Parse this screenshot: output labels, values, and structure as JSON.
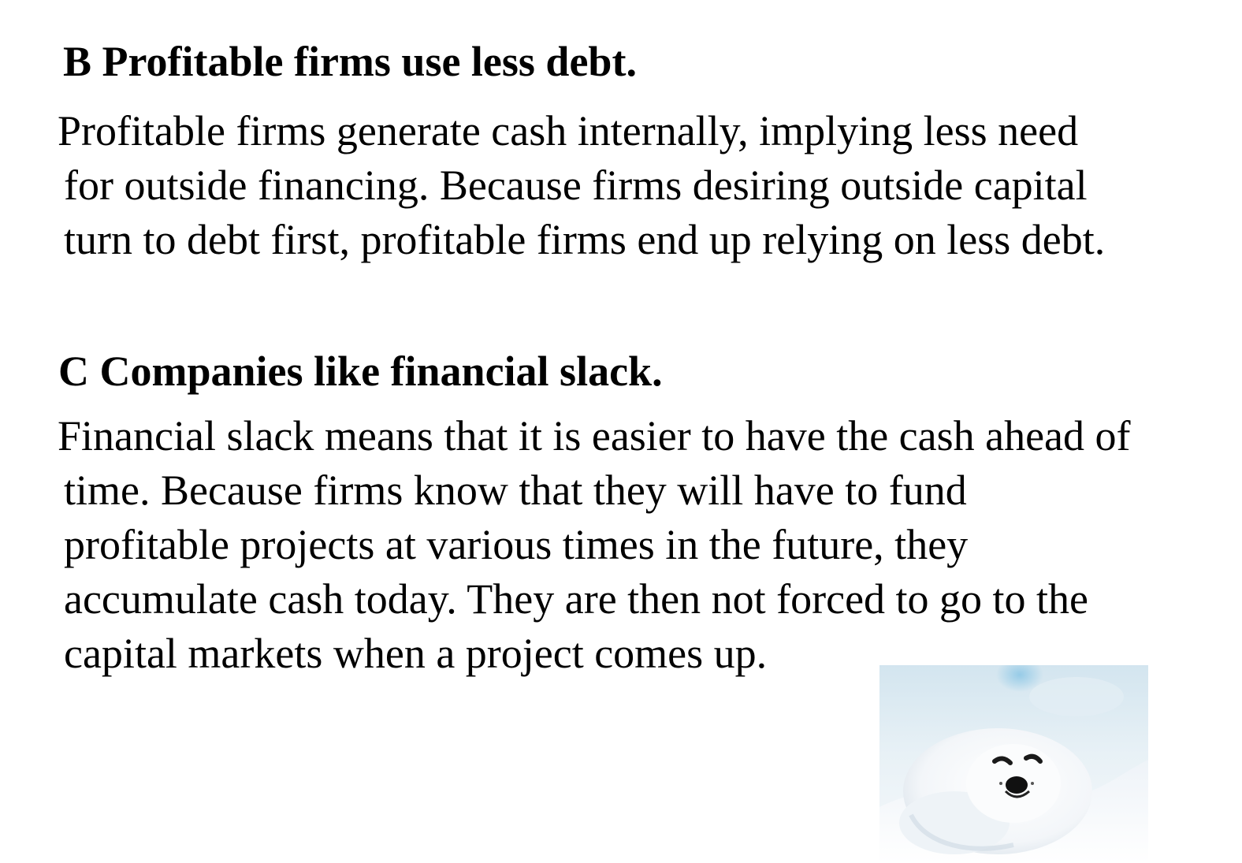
{
  "section_b": {
    "heading": "B Profitable firms use less debt.",
    "lines": [
      "Profitable firms generate cash internally, implying less need",
      "for outside financing. Because firms desiring outside capital",
      "turn to debt first, profitable firms end up relying on less debt."
    ]
  },
  "section_c": {
    "heading": "C Companies like financial slack.",
    "lines": [
      "Financial slack means that it is easier to have the cash ahead of",
      "time. Because firms know that they will have to fund",
      "profitable projects at various times in the future, they",
      "accumulate cash today. They are then not forced to go to the",
      "capital markets when a project comes up."
    ]
  },
  "photo": {
    "subject": "seal-pup-icon",
    "colors": {
      "sky_top": "#cfe3ee",
      "sky_accent": "#a9d4ea",
      "snow": "#f4f8fb",
      "shadow": "#c9d6e3",
      "fur": "#ffffff",
      "eye": "#1a1a1a"
    }
  }
}
